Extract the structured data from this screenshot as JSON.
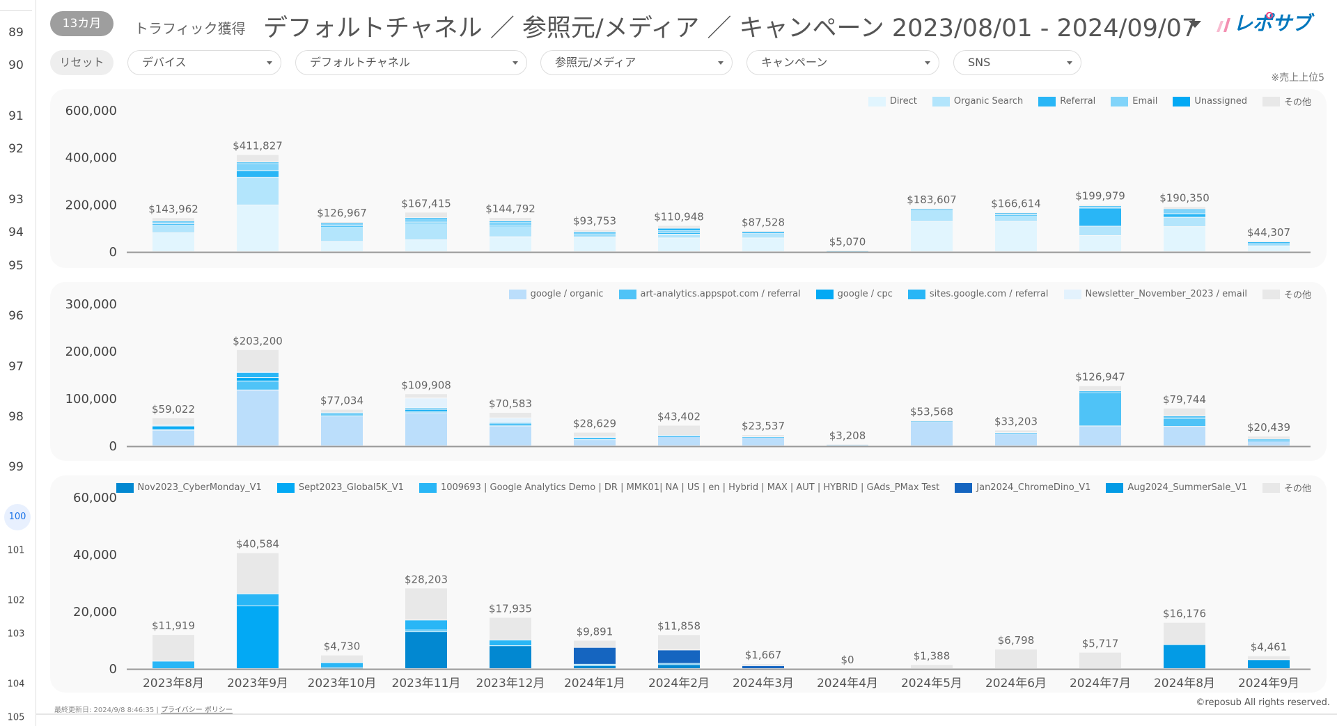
{
  "row_numbers": [
    {
      "n": "89"
    },
    {
      "n": "90"
    },
    {
      "n": "91"
    },
    {
      "n": "92"
    },
    {
      "n": "93"
    },
    {
      "n": "94"
    },
    {
      "n": "95"
    },
    {
      "n": "96"
    },
    {
      "n": "97"
    },
    {
      "n": "98"
    },
    {
      "n": "99"
    },
    {
      "n": "100",
      "selected": true
    },
    {
      "n": "101"
    },
    {
      "n": "102"
    },
    {
      "n": "103"
    },
    {
      "n": "104"
    },
    {
      "n": "105"
    }
  ],
  "header": {
    "period_badge": "13カ月",
    "subtitle": "トラフィック獲得",
    "title": "デフォルトチャネル ／ 参照元/メディア ／ キャンペーン 2023/08/01 - 2024/09/07",
    "logo_text": "レポサブ"
  },
  "filters": {
    "reset": "リセット",
    "items": [
      {
        "label": "デバイス"
      },
      {
        "label": "デフォルトチャネル"
      },
      {
        "label": "参照元/メディア"
      },
      {
        "label": "キャンペーン"
      },
      {
        "label": "SNS"
      }
    ],
    "note": "※売上上位5"
  },
  "chart_data": [
    {
      "type": "bar",
      "stacked": true,
      "categories": [
        "2023年8月",
        "2023年9月",
        "2023年10月",
        "2023年11月",
        "2023年12月",
        "2024年1月",
        "2024年2月",
        "2024年3月",
        "2024年4月",
        "2024年5月",
        "2024年6月",
        "2024年7月",
        "2024年8月",
        "2024年9月"
      ],
      "ylim": [
        0,
        600000
      ],
      "yticks": [
        "0",
        "200,000",
        "400,000",
        "600,000"
      ],
      "legend": "top-right",
      "totals": [
        "$143,962",
        "$411,827",
        "$126,967",
        "$167,415",
        "$144,792",
        "$93,753",
        "$110,948",
        "$87,528",
        "$5,070",
        "$183,607",
        "$166,614",
        "$199,979",
        "$190,350",
        "$44,307"
      ],
      "series": [
        {
          "name": "Direct",
          "color": "#e1f5fe",
          "values": [
            80000,
            198000,
            43000,
            50000,
            63000,
            60000,
            58000,
            58000,
            2000,
            128000,
            128000,
            68000,
            106000,
            23000
          ]
        },
        {
          "name": "Organic Search",
          "color": "#b3e5fc",
          "values": [
            35000,
            118000,
            64000,
            72000,
            45000,
            11000,
            16000,
            20000,
            2000,
            50000,
            26000,
            40000,
            40000,
            10000
          ]
        },
        {
          "name": "Referral",
          "color": "#29b6f6",
          "values": [
            3000,
            27000,
            2000,
            3000,
            3000,
            2000,
            7000,
            4000,
            0,
            0,
            3000,
            77000,
            15000,
            2000
          ]
        },
        {
          "name": "Email",
          "color": "#81d4fa",
          "values": [
            8000,
            31000,
            9000,
            16000,
            15000,
            8000,
            10000,
            2000,
            500,
            3000,
            6000,
            5000,
            17000,
            4000
          ]
        },
        {
          "name": "Unassigned",
          "color": "#03a9f4",
          "values": [
            3000,
            6000,
            3000,
            3000,
            4000,
            3000,
            8000,
            2000,
            0,
            1000,
            2000,
            4000,
            3000,
            2000
          ]
        },
        {
          "name": "その他",
          "color": "#e8e8e8",
          "values": [
            14962,
            31827,
            5967,
            23415,
            14792,
            9753,
            11948,
            1528,
            570,
            1607,
            1614,
            5979,
            9350,
            3307
          ]
        }
      ]
    },
    {
      "type": "bar",
      "stacked": true,
      "ylim": [
        0,
        300000
      ],
      "yticks": [
        "0",
        "100,000",
        "200,000",
        "300,000"
      ],
      "legend": "top-right",
      "totals": [
        "$59,022",
        "$203,200",
        "$77,034",
        "$109,908",
        "$70,583",
        "$28,629",
        "$43,402",
        "$23,537",
        "$3,208",
        "$53,568",
        "$33,203",
        "$126,947",
        "$79,744",
        "$20,439"
      ],
      "series": [
        {
          "name": "google / organic",
          "color": "#bbdefb",
          "values": [
            33000,
            118000,
            63000,
            70000,
            42000,
            13000,
            20000,
            18000,
            2500,
            51000,
            26000,
            42000,
            41000,
            10000
          ]
        },
        {
          "name": "art-analytics.appspot.com / referral",
          "color": "#4fc3f7",
          "values": [
            2000,
            19000,
            3000,
            3000,
            3000,
            3000,
            1000,
            1000,
            500,
            1500,
            2000,
            70000,
            17000,
            1000
          ]
        },
        {
          "name": "google / cpc",
          "color": "#03a9f4",
          "values": [
            6000,
            7000,
            2000,
            4000,
            2000,
            500,
            0,
            0,
            0,
            0,
            0,
            2000,
            3000,
            3000
          ]
        },
        {
          "name": "sites.google.com / referral",
          "color": "#29b6f6",
          "values": [
            2000,
            11000,
            2000,
            3000,
            2000,
            1000,
            1000,
            0,
            0,
            0,
            0,
            2000,
            2000,
            0
          ]
        },
        {
          "name": "Newsletter_November_2023 / email",
          "color": "#e3f2fd",
          "values": [
            1000,
            1000,
            0,
            21000,
            10000,
            1000,
            0,
            0,
            0,
            0,
            0,
            0,
            0,
            0
          ]
        },
        {
          "name": "その他",
          "color": "#e8e8e8",
          "values": [
            15022,
            47200,
            7034,
            8908,
            11583,
            10129,
            21402,
            4537,
            208,
            1068,
            5203,
            10947,
            16744,
            6439
          ]
        }
      ]
    },
    {
      "type": "bar",
      "stacked": true,
      "ylim": [
        0,
        60000
      ],
      "yticks": [
        "0",
        "20,000",
        "40,000",
        "60,000"
      ],
      "legend": "top-right",
      "totals": [
        "$11,919",
        "$40,584",
        "$4,730",
        "$28,203",
        "$17,935",
        "$9,891",
        "$11,858",
        "$1,667",
        "$0",
        "$1,388",
        "$6,798",
        "$5,717",
        "$16,176",
        "$4,461"
      ],
      "series": [
        {
          "name": "Nov2023_CyberMonday_V1",
          "color": "#0288d1",
          "values": [
            0,
            0,
            400,
            12900,
            8000,
            1000,
            1400,
            0,
            0,
            0,
            0,
            0,
            0,
            0
          ]
        },
        {
          "name": "Sept2023_Global5K_V1",
          "color": "#03a9f4",
          "values": [
            0,
            22000,
            0,
            600,
            0,
            0,
            0,
            0,
            0,
            0,
            0,
            0,
            0,
            0
          ]
        },
        {
          "name": "1009693 | Google Analytics Demo | DR | MMK01| NA | US | en | Hybrid | MAX | AUT | HYBRID | GAds_PMax Test",
          "color": "#29b6f6",
          "values": [
            2600,
            4200,
            1700,
            3500,
            2000,
            500,
            400,
            0,
            0,
            0,
            0,
            0,
            0,
            0
          ]
        },
        {
          "name": "Jan2024_ChromeDino_V1",
          "color": "#1565c0",
          "values": [
            0,
            0,
            0,
            0,
            0,
            5900,
            4700,
            1000,
            0,
            0,
            0,
            0,
            0,
            0
          ]
        },
        {
          "name": "Aug2024_SummerSale_V1",
          "color": "#039be5",
          "values": [
            0,
            0,
            0,
            0,
            0,
            0,
            0,
            0,
            0,
            0,
            0,
            0,
            8400,
            3100
          ]
        },
        {
          "name": "その他",
          "color": "#e8e8e8",
          "values": [
            9319,
            14384,
            2630,
            11203,
            7935,
            2491,
            5358,
            667,
            0,
            1388,
            6798,
            5717,
            7776,
            1361
          ]
        }
      ]
    }
  ],
  "footer": {
    "updated": "最終更新日: 2024/9/8 8:46:35",
    "separator": "|",
    "privacy": "プライバシー ポリシー",
    "copyright": "©reposub All rights reserved."
  }
}
